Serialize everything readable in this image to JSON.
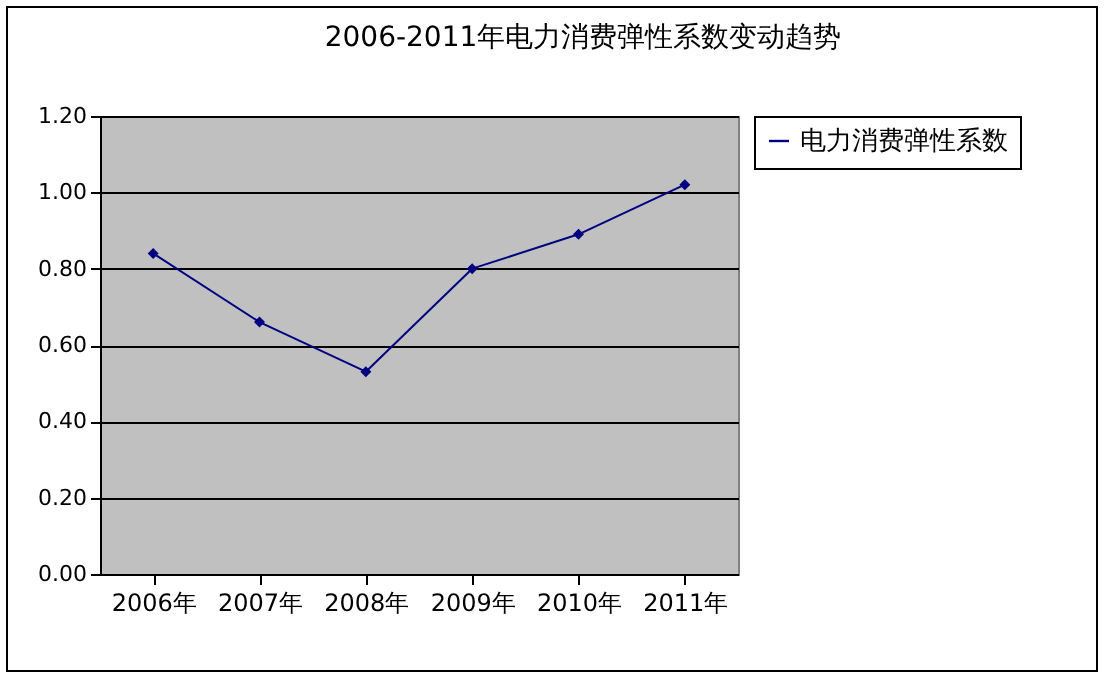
{
  "chart_data": {
    "type": "line",
    "title": "2006-2011年电力消费弹性系数变动趋势",
    "categories": [
      "2006年",
      "2007年",
      "2008年",
      "2009年",
      "2010年",
      "2011年"
    ],
    "series": [
      {
        "name": "电力消费弹性系数",
        "color": "#000080",
        "values": [
          0.84,
          0.66,
          0.53,
          0.8,
          0.89,
          1.02
        ]
      }
    ],
    "ylim": [
      0,
      1.2
    ],
    "yticks": [
      {
        "value": 0,
        "label": "0.00"
      },
      {
        "value": 0.2,
        "label": "0.20"
      },
      {
        "value": 0.4,
        "label": "0.40"
      },
      {
        "value": 0.6,
        "label": "0.60"
      },
      {
        "value": 0.8,
        "label": "0.80"
      },
      {
        "value": 1,
        "label": "1.00"
      },
      {
        "value": 1.2,
        "label": "1.20"
      }
    ],
    "grid": "y",
    "legend": "right",
    "marker": "diamond",
    "line_style": "solid"
  }
}
